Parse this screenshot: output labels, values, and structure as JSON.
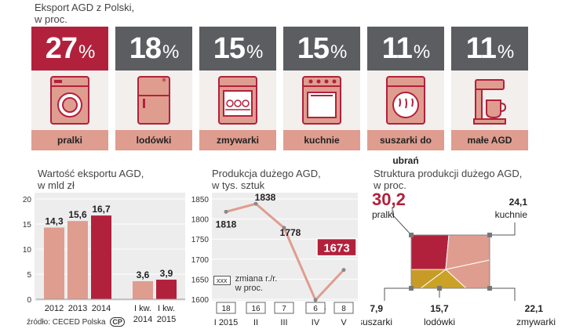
{
  "header": {
    "title_line1": "Eksport AGD z Polski,",
    "title_line2": "w proc."
  },
  "colors": {
    "accent": "#b2213c",
    "gray_card": "#5b5d60",
    "salmon": "#df9d8f",
    "mustard": "#c9a227"
  },
  "categories": [
    {
      "pct": "27",
      "sym": "%",
      "label": "pralki",
      "icon": "washing-machine-icon",
      "highlight": true
    },
    {
      "pct": "18",
      "sym": "%",
      "label": "lodówki",
      "icon": "fridge-icon",
      "highlight": false
    },
    {
      "pct": "15",
      "sym": "%",
      "label": "zmywarki",
      "icon": "dishwasher-icon",
      "highlight": false
    },
    {
      "pct": "15",
      "sym": "%",
      "label": "kuchnie",
      "icon": "stove-icon",
      "highlight": false
    },
    {
      "pct": "11",
      "sym": "%",
      "label": "suszarki do ubrań",
      "icon": "dryer-icon",
      "highlight": false
    },
    {
      "pct": "11",
      "sym": "%",
      "label": "małe AGD",
      "icon": "coffee-maker-icon",
      "highlight": false
    }
  ],
  "chart_data": [
    {
      "type": "bar",
      "title": "Wartość eksportu AGD,",
      "subtitle": "w mld zł",
      "categories": [
        "2012",
        "2013",
        "2014",
        "I kw. 2014",
        "I kw. 2015"
      ],
      "values": [
        14.3,
        15.6,
        16.7,
        3.6,
        3.9
      ],
      "value_labels": [
        "14,3",
        "15,6",
        "16,7",
        "3,6",
        "3,9"
      ],
      "yticks": [
        "0",
        "5",
        "10",
        "15",
        "20"
      ],
      "ylim": [
        0,
        20
      ]
    },
    {
      "type": "line",
      "title": "Produkcja dużego AGD,",
      "subtitle": "w tys. sztuk",
      "categories": [
        "I 2015",
        "II",
        "III",
        "IV",
        "V"
      ],
      "values": [
        1818,
        1838,
        1778,
        1598,
        1673
      ],
      "value_labels": [
        "1818",
        "1838",
        "1778",
        "1598",
        "1673"
      ],
      "yticks": [
        "1600",
        "1650",
        "1700",
        "1750",
        "1800",
        "1850"
      ],
      "ylim": [
        1600,
        1850
      ],
      "change_yoy": [
        "18",
        "16",
        "7",
        "6",
        "8"
      ],
      "legend_box": "xxx",
      "legend_text_line1": "zmiana r./r.",
      "legend_text_line2": "w proc."
    },
    {
      "type": "pie",
      "title": "Struktura produkcji dużego AGD,",
      "subtitle": "w proc.",
      "slices": [
        {
          "label": "pralki",
          "value": 30.2,
          "value_label": "30,2",
          "color": "#b2213c"
        },
        {
          "label": "kuchnie",
          "value": 24.1,
          "value_label": "24,1",
          "color": "#df9d8f"
        },
        {
          "label": "zmywarki",
          "value": 22.1,
          "value_label": "22,1",
          "color": "#df9d8f"
        },
        {
          "label": "lodówki",
          "value": 15.7,
          "value_label": "15,7",
          "color": "#c9a227"
        },
        {
          "label": "suszarki",
          "value": 7.9,
          "value_label": "7,9",
          "color": "#c9a227"
        }
      ]
    }
  ],
  "source": {
    "text": "źródło: CECED Polska",
    "logo": "CP"
  }
}
